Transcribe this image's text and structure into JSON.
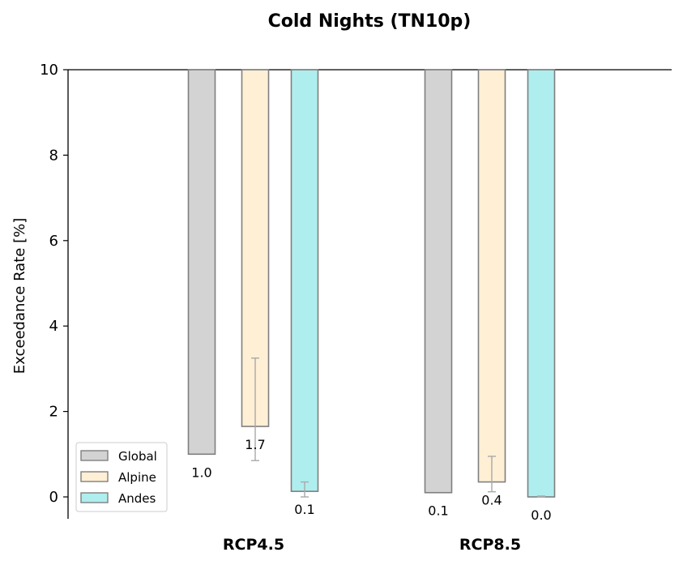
{
  "chart_data": {
    "type": "bar",
    "title": "Cold Nights (TN10p)",
    "ylabel": "Exceedance Rate [%]",
    "xlabel": "",
    "ylim": [
      -0.5,
      10
    ],
    "yticks": [
      "0",
      "2",
      "4",
      "6",
      "8",
      "10"
    ],
    "bar_origin": 10,
    "categories": [
      "RCP4.5",
      "RCP8.5"
    ],
    "legend_position": "lower-left",
    "grid": false,
    "series": [
      {
        "name": "Global",
        "color": "#d3d3d3",
        "values": [
          1.0,
          0.1
        ],
        "labels": [
          "1.0",
          "0.1"
        ],
        "error_low": [
          null,
          null
        ],
        "error_high": [
          null,
          null
        ]
      },
      {
        "name": "Alpine",
        "color": "#ffefd5",
        "values": [
          1.65,
          0.35
        ],
        "labels": [
          "1.7",
          "0.4"
        ],
        "error_low": [
          0.85,
          0.12
        ],
        "error_high": [
          3.25,
          0.95
        ]
      },
      {
        "name": "Andes",
        "color": "#afeeee",
        "values": [
          0.13,
          0.0
        ],
        "labels": [
          "0.1",
          "0.0"
        ],
        "error_low": [
          0.0,
          0.0
        ],
        "error_high": [
          0.35,
          0.02
        ]
      }
    ]
  }
}
